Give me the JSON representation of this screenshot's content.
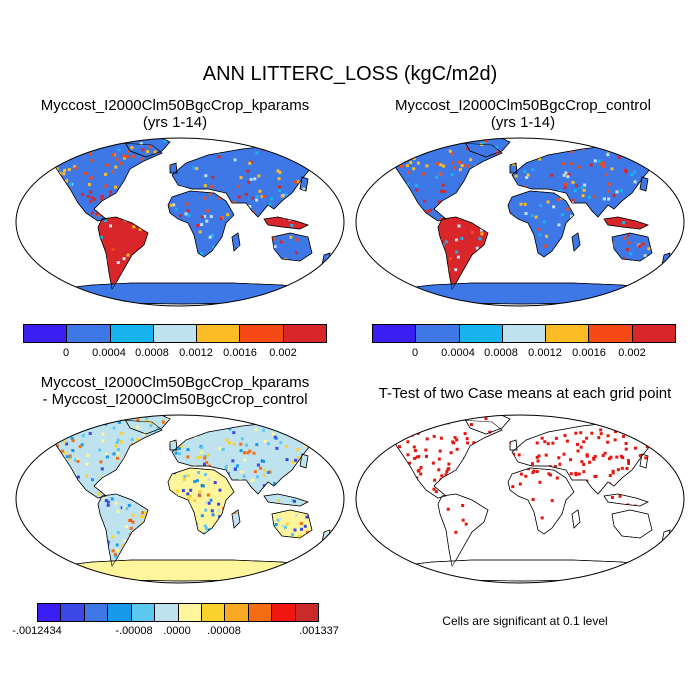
{
  "title": "ANN LITTERC_LOSS (kgC/m2d)",
  "panels": {
    "top_left": {
      "title_line1": "Myccost_I2000Clm50BgcCrop_kparams",
      "title_line2": "(yrs 1-14)"
    },
    "top_right": {
      "title_line1": "Myccost_I2000Clm50BgcCrop_control",
      "title_line2": "(yrs 1-14)"
    },
    "bottom_left": {
      "title_line1": "Myccost_I2000Clm50BgcCrop_kparams",
      "title_line2": "- Myccost_I2000Clm50BgcCrop_control"
    },
    "bottom_right": {
      "title_line1": "T-Test of two Case means at each grid point",
      "note": "Cells are significant at 0.1 level"
    }
  },
  "colorbar_main": {
    "colors": [
      "#3b1ff2",
      "#3d78e6",
      "#18b4ef",
      "#bfe2ef",
      "#fbbc25",
      "#f54a16",
      "#d8262a"
    ],
    "labels": [
      "0",
      "0.0004",
      "0.0008",
      "0.0012",
      "0.0016",
      "0.002"
    ]
  },
  "colorbar_diff": {
    "colors": [
      "#3b1ff2",
      "#3a49e6",
      "#3d78e6",
      "#1798e9",
      "#5cc7ef",
      "#bfe2ef",
      "#fff59c",
      "#fbd12d",
      "#f9a923",
      "#f66c12",
      "#ef1710",
      "#c92a2a"
    ],
    "labels": [
      "-.0012434",
      "-.00008",
      ".0000",
      ".00008",
      ".001337"
    ]
  },
  "colors": {
    "ocean": "#ffffff",
    "significant": "#e8140e",
    "coast": "#000000"
  }
}
